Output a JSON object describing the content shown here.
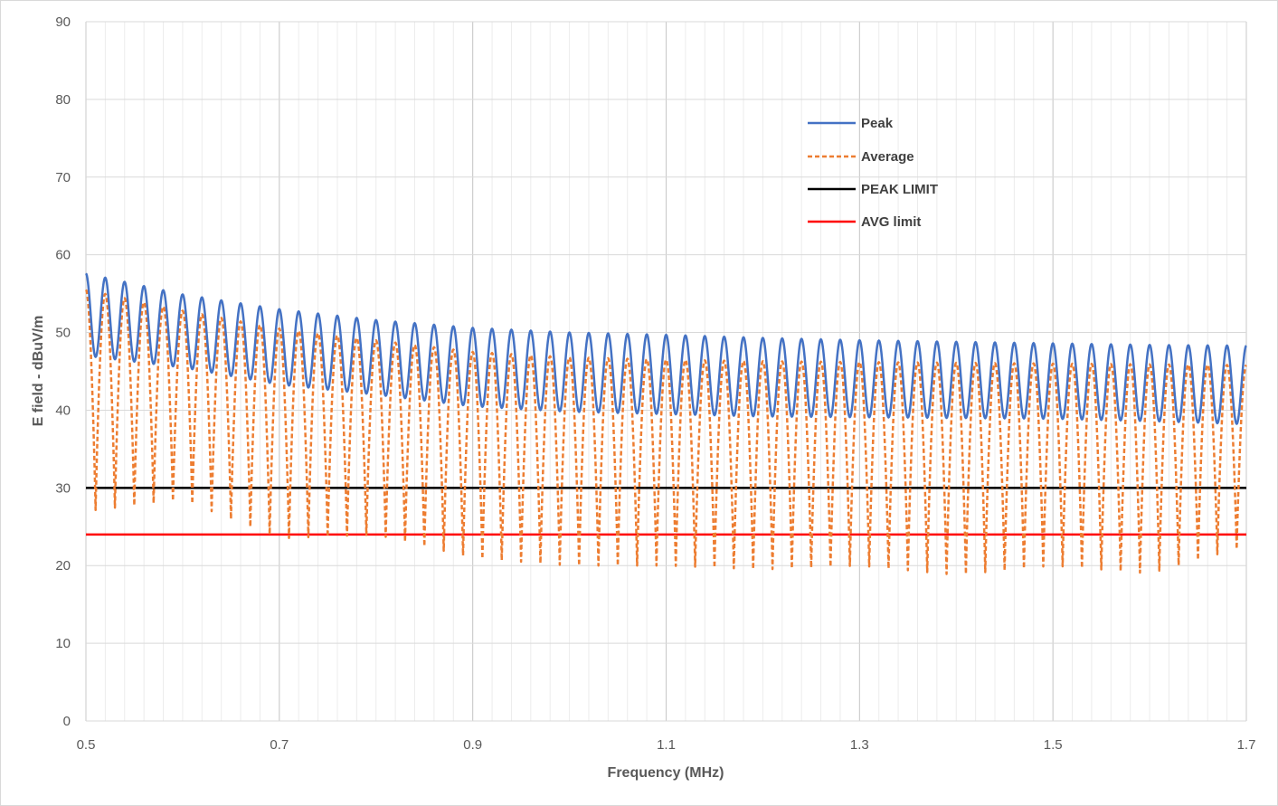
{
  "chart_data": {
    "type": "line",
    "title": "",
    "xlabel": "Frequency (MHz)",
    "ylabel": "E field - dBuV/m",
    "xlim": [
      0.5,
      1.7
    ],
    "ylim": [
      0,
      90
    ],
    "x_ticks": [
      "0.5",
      "0.7",
      "0.9",
      "1.1",
      "1.3",
      "1.5",
      "1.7"
    ],
    "y_ticks": [
      "0",
      "10",
      "20",
      "30",
      "40",
      "50",
      "60",
      "70",
      "80",
      "90"
    ],
    "x_minor_step": 0.02,
    "y_grid_step": 10,
    "grid": true,
    "legend_position": "top-right",
    "oscillation": {
      "x_start": 0.5,
      "x_end": 1.7,
      "period": 0.02,
      "first_peak": 0.5
    },
    "series": [
      {
        "name": "Peak",
        "color": "#4472C4",
        "style": "solid",
        "envelope": {
          "x": [
            0.5,
            0.6,
            0.7,
            0.8,
            0.9,
            1.0,
            1.1,
            1.2,
            1.3,
            1.4,
            1.5,
            1.6,
            1.7
          ],
          "max": [
            57.6,
            54.9,
            53.0,
            51.6,
            50.6,
            50.0,
            49.7,
            49.3,
            49.0,
            48.8,
            48.6,
            48.4,
            48.3
          ],
          "min": [
            47.0,
            45.5,
            43.3,
            42.0,
            40.5,
            39.8,
            39.5,
            39.2,
            39.1,
            39.0,
            38.9,
            38.6,
            38.2
          ]
        }
      },
      {
        "name": "Average",
        "color": "#ED7D31",
        "style": "dashed",
        "envelope": {
          "x": [
            0.5,
            0.6,
            0.7,
            0.8,
            0.9,
            1.0,
            1.1,
            1.2,
            1.3,
            1.4,
            1.5,
            1.6,
            1.7
          ],
          "max": [
            55.5,
            52.8,
            50.5,
            49.0,
            47.5,
            46.8,
            46.5,
            46.3,
            46.2,
            46.1,
            46.0,
            45.9,
            45.8
          ],
          "min": [
            27.0,
            28.5,
            23.5,
            24.0,
            21.0,
            20.0,
            20.0,
            19.5,
            20.0,
            18.8,
            20.0,
            19.0,
            22.5
          ]
        }
      },
      {
        "name": "PEAK LIMIT",
        "color": "#000000",
        "style": "solid",
        "x": [
          0.5,
          1.7
        ],
        "y": [
          30,
          30
        ]
      },
      {
        "name": "AVG limit",
        "color": "#FF0000",
        "style": "solid",
        "x": [
          0.5,
          1.7
        ],
        "y": [
          24,
          24
        ]
      }
    ]
  }
}
